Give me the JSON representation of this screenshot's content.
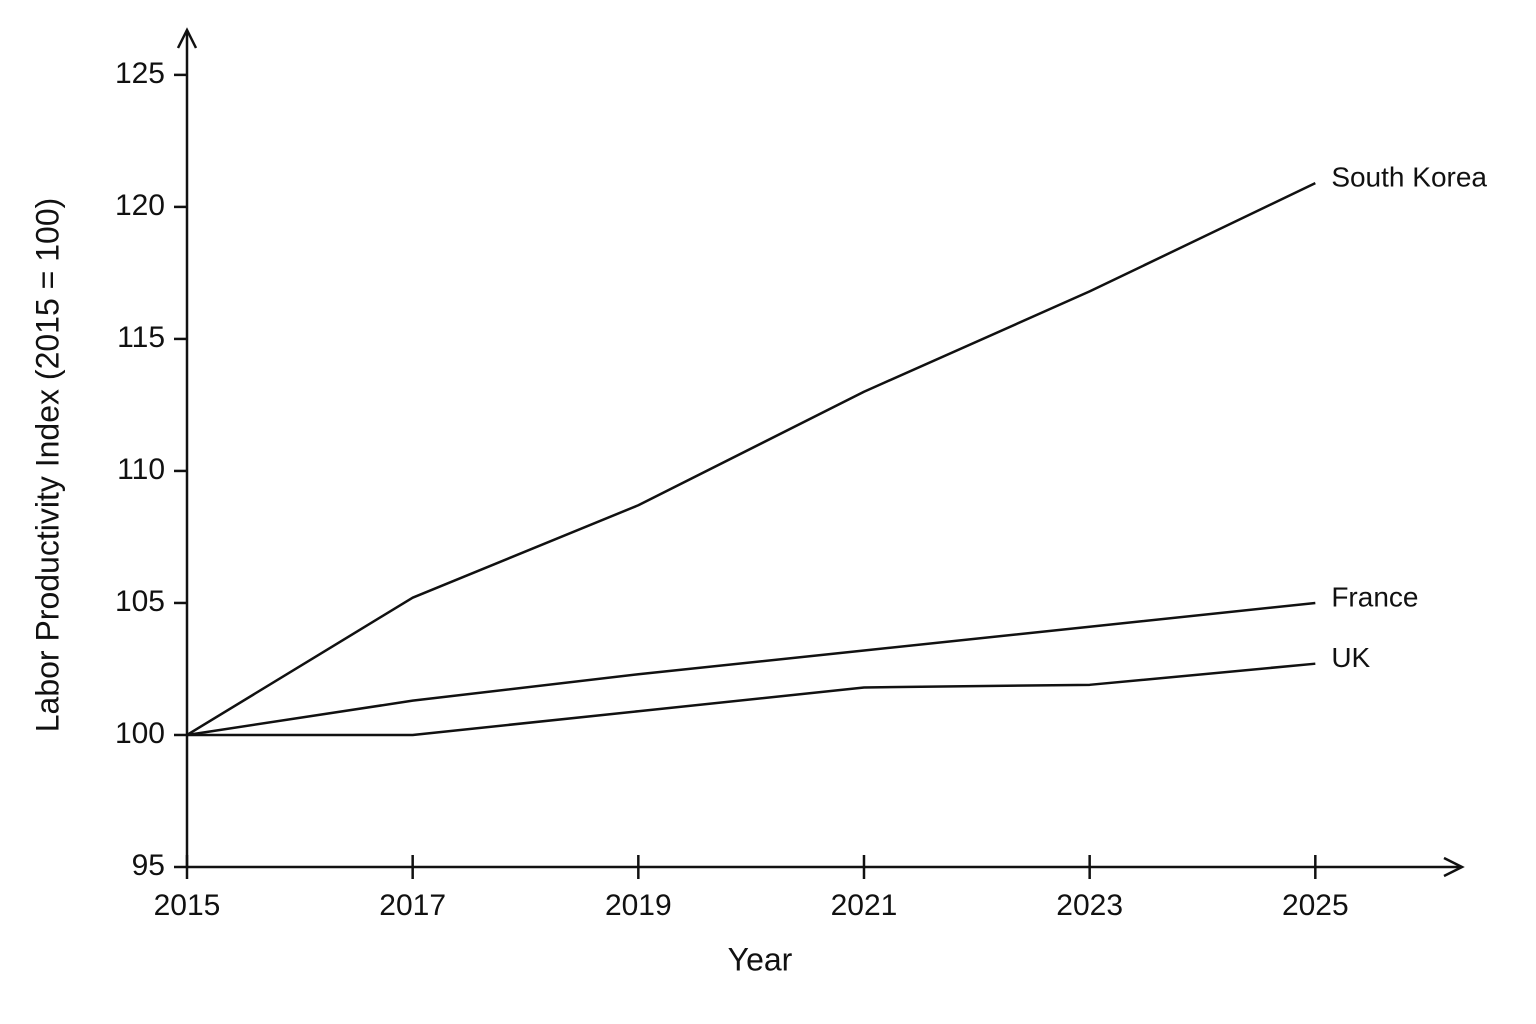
{
  "chart_data": {
    "type": "line",
    "x_label": "Year",
    "y_label": "Labor Productivity Index (2015 = 100)",
    "x": [
      2015,
      2017,
      2019,
      2021,
      2023,
      2025
    ],
    "series": [
      {
        "name": "South Korea",
        "color": "#111111",
        "values": [
          100,
          105.2,
          108.7,
          113.0,
          116.8,
          120.9
        ]
      },
      {
        "name": "France",
        "color": "#111111",
        "values": [
          100,
          101.3,
          102.3,
          103.2,
          104.1,
          105.0
        ]
      },
      {
        "name": "UK",
        "color": "#111111",
        "values": [
          100,
          100.0,
          100.9,
          101.8,
          101.9,
          102.7
        ]
      }
    ],
    "xlim": [
      2015,
      2026.3
    ],
    "ylim": [
      95,
      126.7
    ],
    "xticks": [
      2015,
      2017,
      2019,
      2021,
      2023,
      2025
    ],
    "yticks": [
      95,
      100,
      105,
      110,
      115,
      120,
      125
    ],
    "grid": false,
    "legend": "line-end"
  }
}
